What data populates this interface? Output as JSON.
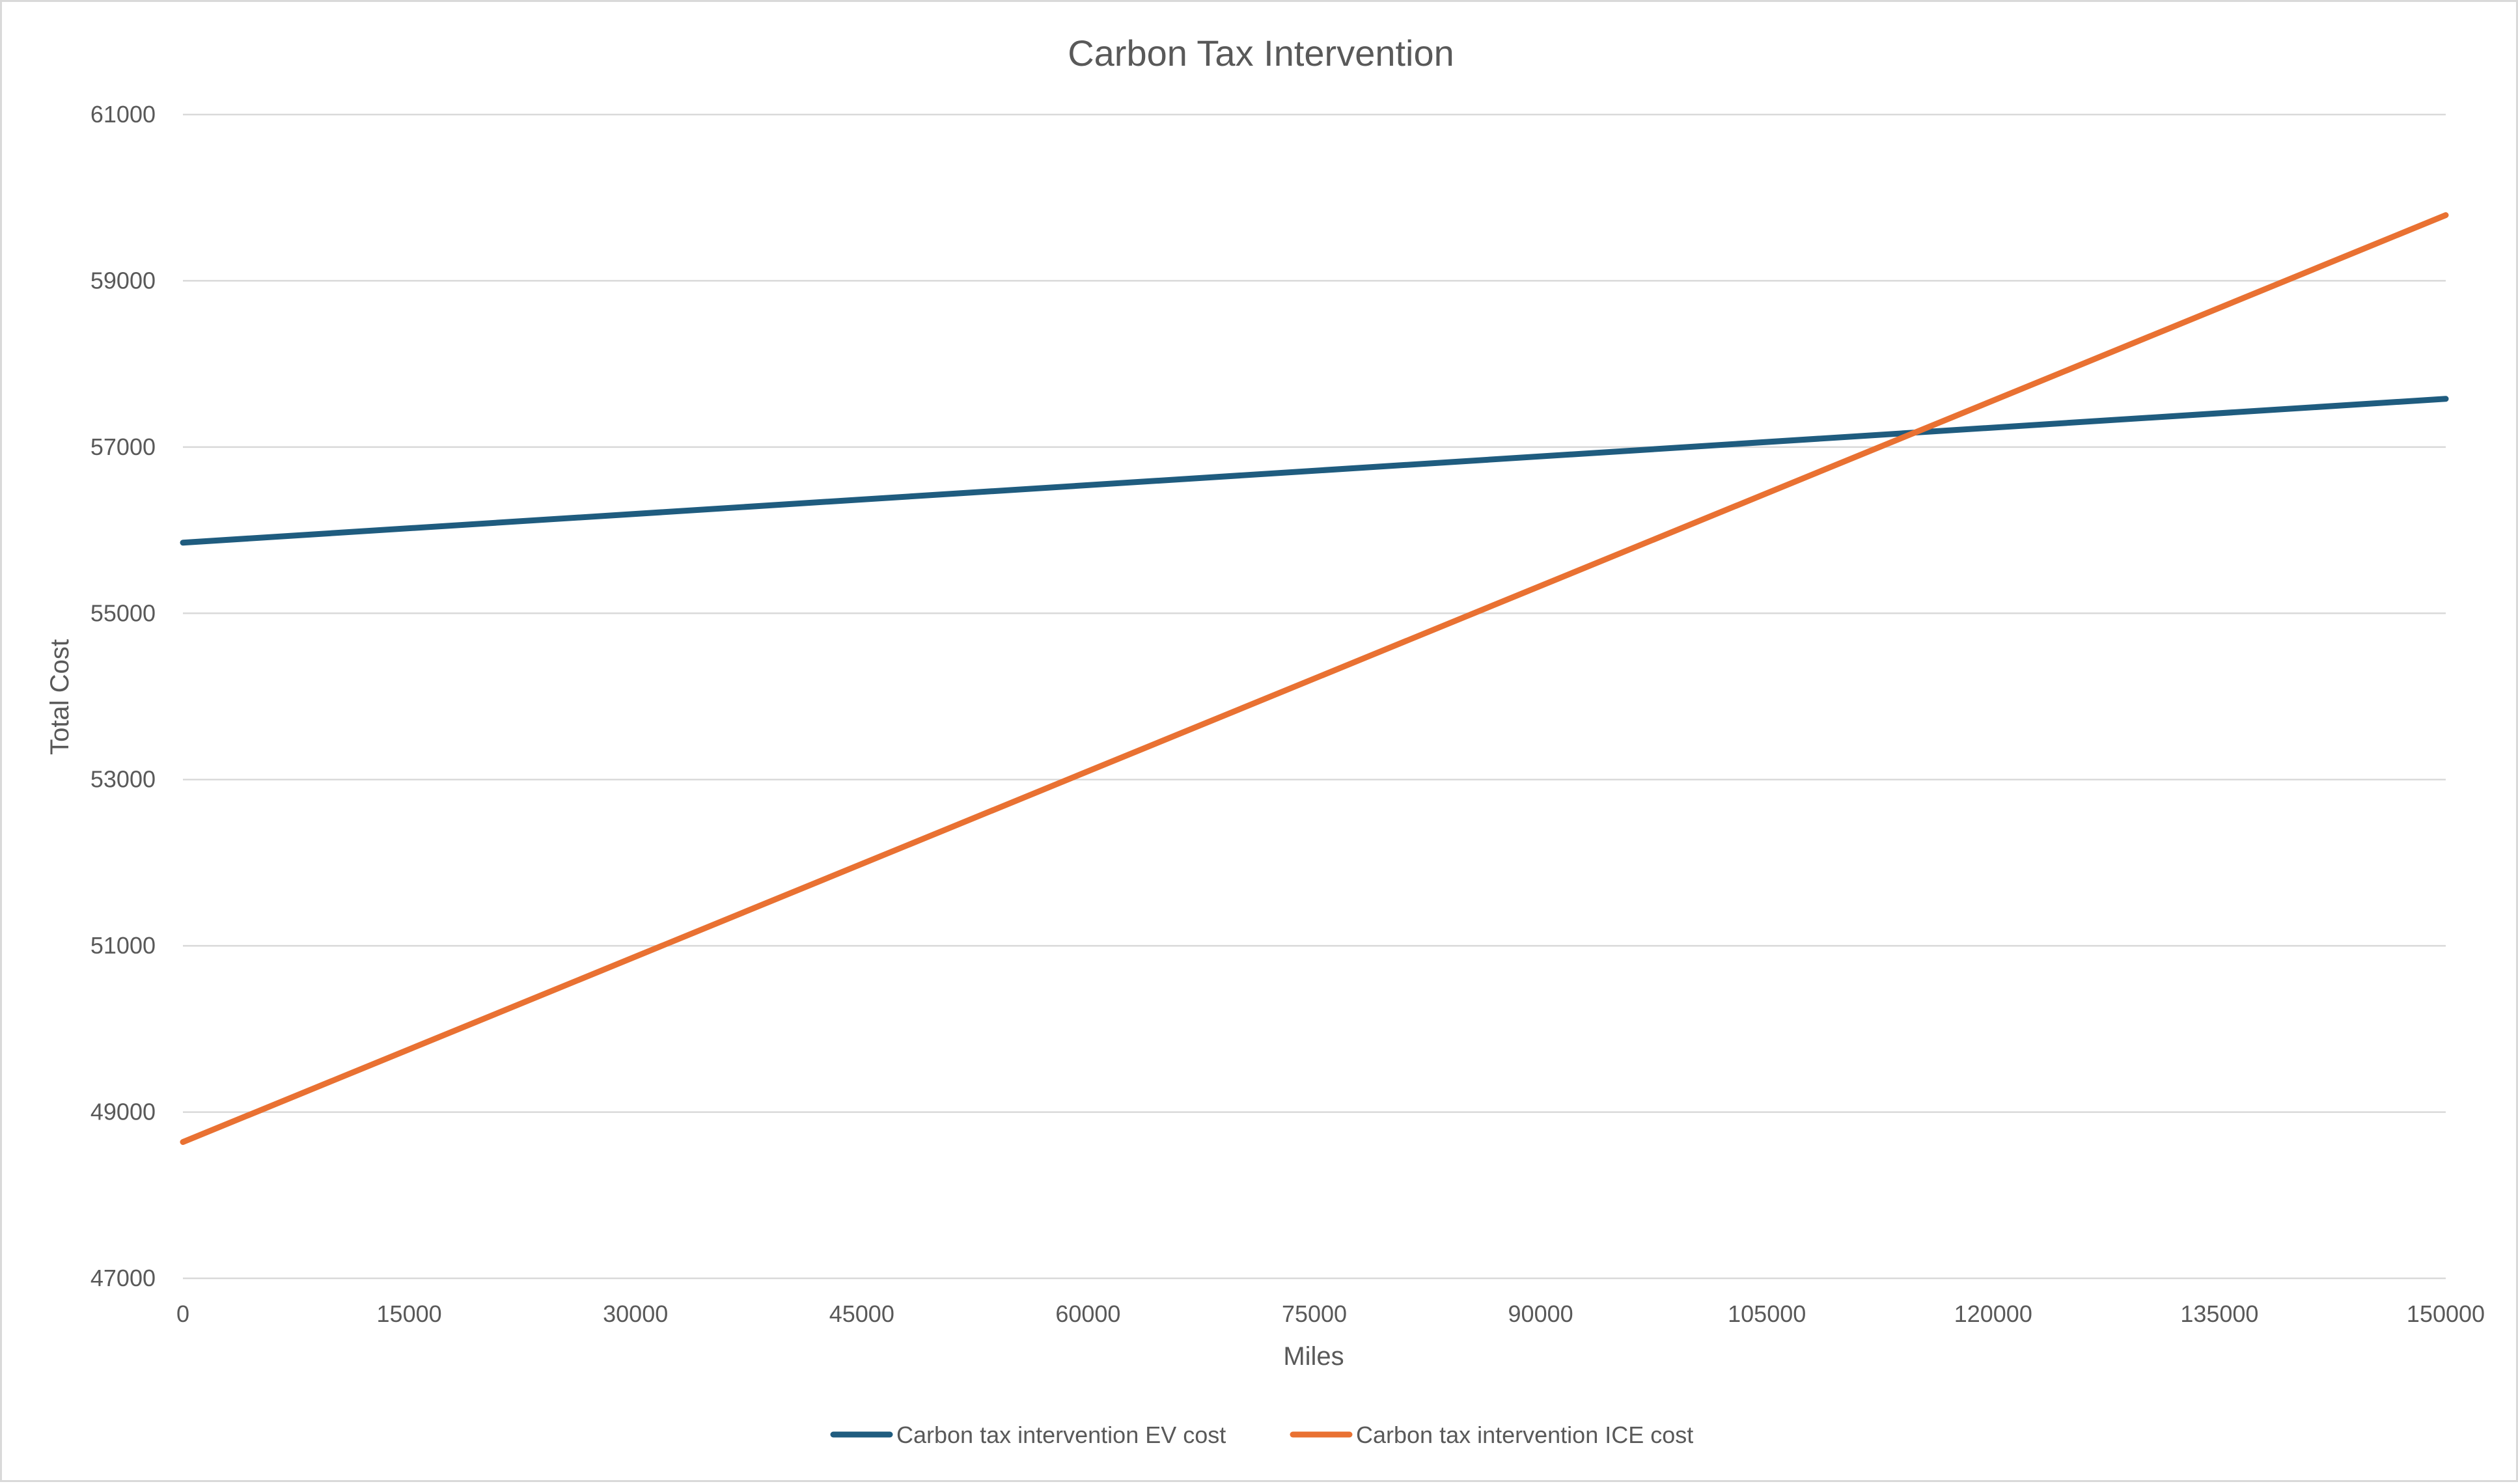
{
  "chart_data": {
    "type": "line",
    "title": "Carbon Tax Intervention",
    "xlabel": "Miles",
    "ylabel": "Total Cost",
    "x_ticks": [
      0,
      15000,
      30000,
      45000,
      60000,
      75000,
      90000,
      105000,
      120000,
      135000,
      150000
    ],
    "y_ticks": [
      47000,
      49000,
      51000,
      53000,
      55000,
      57000,
      59000,
      61000
    ],
    "xlim": [
      0,
      150000
    ],
    "ylim": [
      47000,
      61000
    ],
    "grid": "horizontal",
    "legend_position": "bottom",
    "series": [
      {
        "name": "Carbon tax intervention EV cost",
        "color": "#1f5c7f",
        "x": [
          0,
          150000
        ],
        "y": [
          55850,
          57580
        ]
      },
      {
        "name": "Carbon tax intervention ICE cost",
        "color": "#e97132",
        "x": [
          0,
          150000
        ],
        "y": [
          48640,
          59790
        ]
      }
    ]
  }
}
